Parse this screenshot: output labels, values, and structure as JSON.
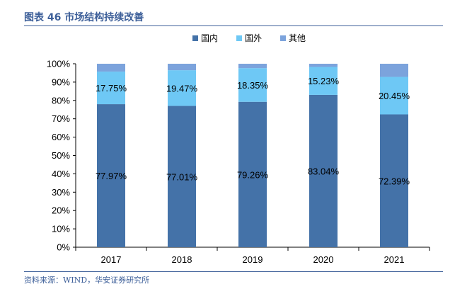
{
  "figure_title": "图表 46 市场结构持续改善",
  "source": "资料来源：WIND，华安证券研究所",
  "chart_data": {
    "type": "bar",
    "stacked": true,
    "percent": true,
    "categories": [
      "2017",
      "2018",
      "2019",
      "2020",
      "2021"
    ],
    "series": [
      {
        "name": "国内",
        "color": "#4472A8",
        "values": [
          77.97,
          77.01,
          79.26,
          83.04,
          72.39
        ],
        "labels": [
          "77.97%",
          "77.01%",
          "79.26%",
          "83.04%",
          "72.39%"
        ]
      },
      {
        "name": "国外",
        "color": "#6EC8F5",
        "values": [
          17.75,
          19.47,
          18.35,
          15.23,
          20.45
        ],
        "labels": [
          "17.75%",
          "19.47%",
          "18.35%",
          "15.23%",
          "20.45%"
        ]
      },
      {
        "name": "其他",
        "color": "#7CA3DC",
        "values": [
          4.28,
          3.52,
          2.39,
          1.73,
          7.16
        ]
      }
    ],
    "ylim": [
      0,
      100
    ],
    "yticks": [
      "0%",
      "10%",
      "20%",
      "30%",
      "40%",
      "50%",
      "60%",
      "70%",
      "80%",
      "90%",
      "100%"
    ],
    "legend_position": "top-center",
    "grid": false
  }
}
